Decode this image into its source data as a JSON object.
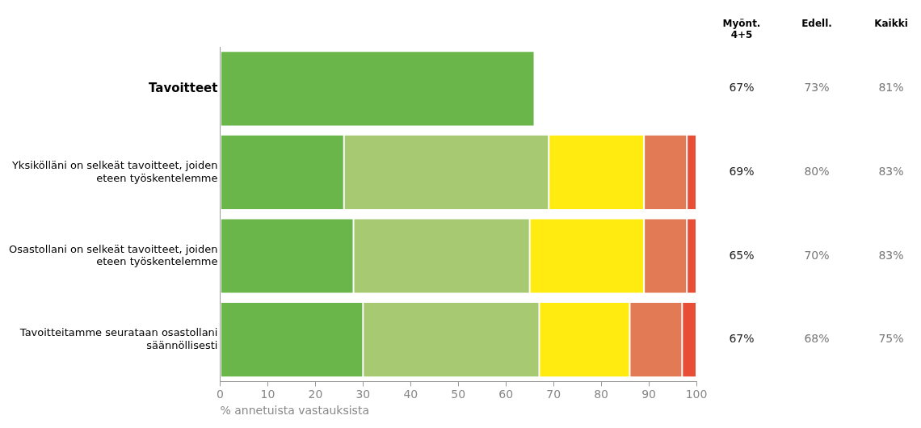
{
  "chart_data": {
    "type": "bar",
    "orientation": "horizontal",
    "stacked": true,
    "grid": false,
    "legend": false,
    "xlabel": "% annetuista vastauksista",
    "categories": [
      "Tavoitteet",
      "Yksikölläni on selkeät tavoitteet, joiden eteen työskentelemme",
      "Osastollani on selkeät tavoitteet, joiden eteen työskentelemme",
      "Tavoitteitamme seurataan osastollani säännöllisesti"
    ],
    "xlim": [
      0,
      100
    ],
    "xticks": [
      0,
      10,
      20,
      30,
      40,
      50,
      60,
      70,
      80,
      90,
      100
    ],
    "series": [
      {
        "color": "#6ab64a",
        "values": [
          66,
          26,
          28,
          30
        ]
      },
      {
        "color": "#a6c972",
        "values": [
          null,
          43,
          37,
          37
        ]
      },
      {
        "color": "#ffeb10",
        "values": [
          null,
          20,
          24,
          19
        ]
      },
      {
        "color": "#e27a55",
        "values": [
          null,
          9,
          9,
          11
        ]
      },
      {
        "color": "#e84e35",
        "values": [
          null,
          2,
          2,
          3
        ]
      }
    ],
    "annotations": [
      "Myönt. 4+5",
      "Edell.",
      "Kaikki",
      "67%",
      "73%",
      "81%",
      "69%",
      "80%",
      "83%",
      "65%",
      "70%",
      "83%",
      "67%",
      "68%",
      "75%"
    ]
  }
}
